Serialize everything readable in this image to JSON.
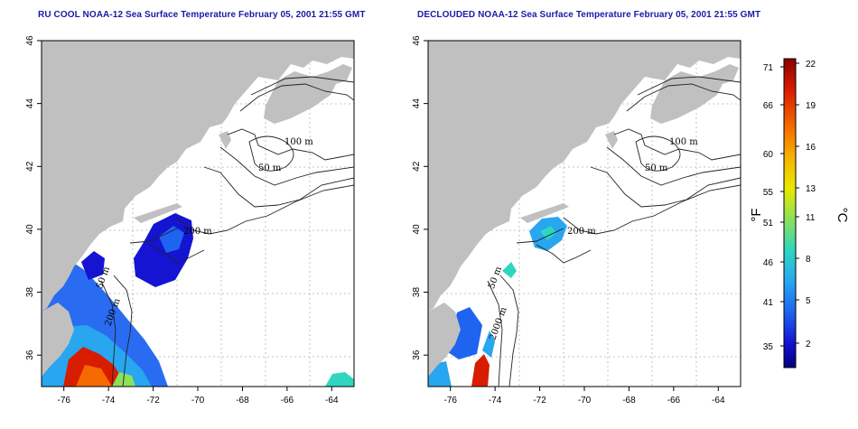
{
  "maps": [
    {
      "title": "RU COOL NOAA-12 Sea Surface Temperature February 05, 2001 21:55 GMT",
      "contours": [
        "100 m",
        "50 m",
        "200 m",
        "50 m",
        "200 m"
      ]
    },
    {
      "title": "DECLOUDED NOAA-12 Sea Surface Temperature February 05, 2001 21:55 GMT",
      "contours": [
        "100 m",
        "50 m",
        "200 m",
        "50 m",
        "2000 m"
      ]
    }
  ],
  "axes": {
    "lon_ticks": [
      "-76",
      "-74",
      "-72",
      "-70",
      "-68",
      "-66",
      "-64"
    ],
    "lat_ticks": [
      "36",
      "38",
      "40",
      "42",
      "44",
      "46"
    ]
  },
  "colorbar": {
    "fahrenheit_label": "°F",
    "celsius_label": "°C",
    "fahrenheit_ticks": [
      "71",
      "66",
      "60",
      "55",
      "51",
      "46",
      "41",
      "35"
    ],
    "celsius_ticks": [
      "22",
      "19",
      "16",
      "13",
      "11",
      "8",
      "5",
      "2"
    ],
    "gradient_colors": [
      "#8b0000",
      "#d81c00",
      "#f46a00",
      "#f5b400",
      "#e8e800",
      "#8ce05a",
      "#2ed6c0",
      "#28a6f0",
      "#1e64f0",
      "#1414d2",
      "#00007d"
    ]
  },
  "colors": {
    "land": "#c0c0c0",
    "ocean": "#ffffff",
    "grid": "#b4b4b4",
    "title": "#1a1aa6"
  }
}
